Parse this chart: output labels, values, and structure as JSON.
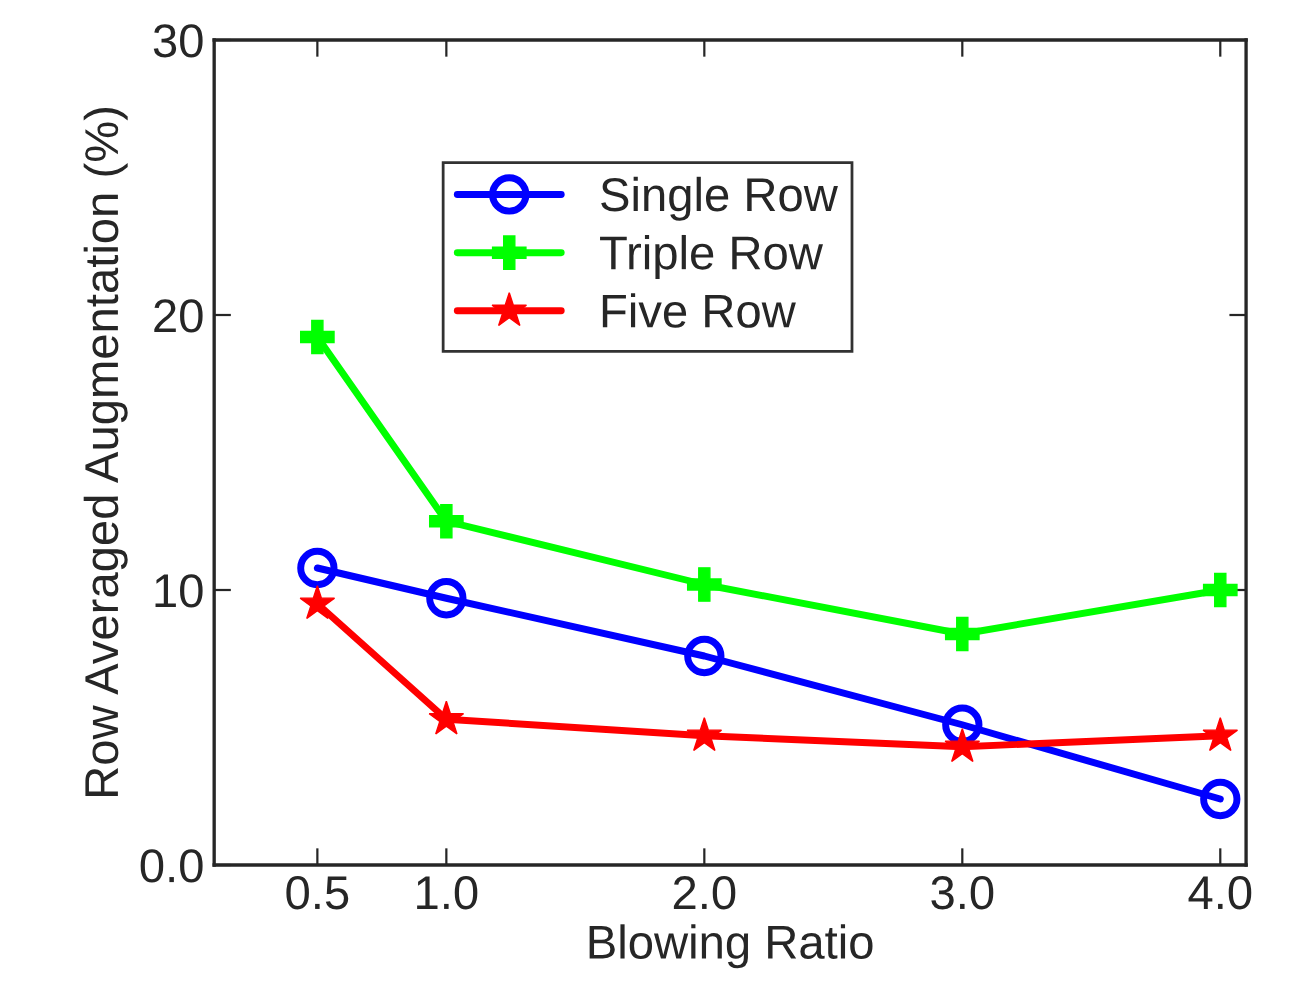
{
  "chart_data": {
    "type": "line",
    "xlabel": "Blowing Ratio",
    "ylabel": "Row Averaged Augmentation (%)",
    "x": [
      0.5,
      1.0,
      2.0,
      3.0,
      4.0
    ],
    "series": [
      {
        "name": "Single Row",
        "color": "#0000ff",
        "marker": "circle",
        "values": [
          10.8,
          9.7,
          7.6,
          5.1,
          2.4
        ]
      },
      {
        "name": "Triple Row",
        "color": "#00ff00",
        "marker": "cross",
        "values": [
          19.2,
          12.5,
          10.2,
          8.4,
          10.0
        ]
      },
      {
        "name": "Five Row",
        "color": "#ff0000",
        "marker": "star",
        "values": [
          9.5,
          5.3,
          4.7,
          4.3,
          4.7
        ]
      }
    ],
    "xlim": [
      0.1,
      4.1
    ],
    "xticks": [
      {
        "value": 0.5,
        "label": "0.5"
      },
      {
        "value": 1.0,
        "label": "1.0"
      },
      {
        "value": 2.0,
        "label": "2.0"
      },
      {
        "value": 3.0,
        "label": "3.0"
      },
      {
        "value": 4.0,
        "label": "4.0"
      }
    ],
    "ylim": [
      0,
      30
    ],
    "yticks": [
      {
        "value": 0,
        "label": "0.0"
      },
      10,
      20,
      30
    ],
    "grid": false,
    "legend": "top",
    "line_style": "solid"
  }
}
